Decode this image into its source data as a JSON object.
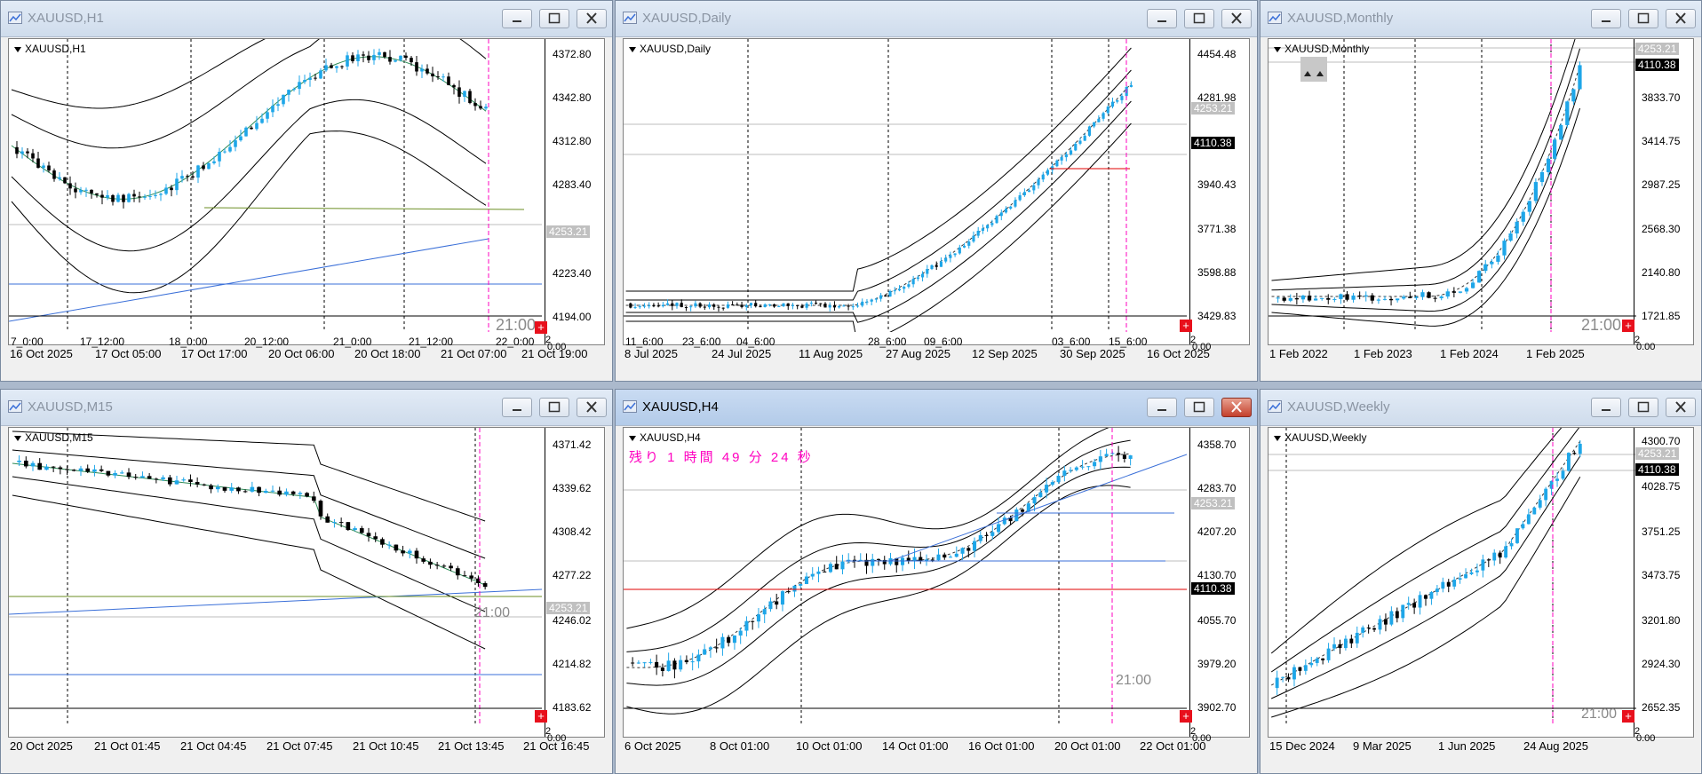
{
  "windows": [
    {
      "id": "h1",
      "title": "XAUUSD,H1",
      "symbol_label": "XAUUSD,H1",
      "prices": [
        "4372.80",
        "4342.80",
        "4312.80",
        "4283.40",
        "4253.21",
        "4223.40",
        "4194.00"
      ],
      "price_tag_gray": "4253.21",
      "big_time": "21:00",
      "inner_times": [
        "7_0:00",
        "17_12:00",
        "18_0:00",
        "20_12:00",
        "21_0:00",
        "21_12:00",
        "22_0:00"
      ],
      "times": [
        "16 Oct 2025",
        "17 Oct 05:00",
        "17 Oct 17:00",
        "20 Oct 06:00",
        "20 Oct 18:00",
        "21 Oct 07:00",
        "21 Oct 19:00"
      ],
      "sub_axis": [
        "2",
        "0.00"
      ]
    },
    {
      "id": "daily",
      "title": "XAUUSD,Daily",
      "symbol_label": "XAUUSD,Daily",
      "prices": [
        "4454.48",
        "4281.98",
        "4253.21",
        "4110.38",
        "3940.43",
        "3771.38",
        "3598.88",
        "3429.83"
      ],
      "price_tag_gray": "4253.21",
      "price_tag_black": "4110.38",
      "inner_times": [
        "11_6:00",
        "23_6:00",
        "04_6:00",
        "28_6:00",
        "09_6:00",
        "03_6:00",
        "15_6:00"
      ],
      "times": [
        "8 Jul 2025",
        "24 Jul 2025",
        "11 Aug 2025",
        "27 Aug 2025",
        "12 Sep 2025",
        "30 Sep 2025",
        "16 Oct 2025"
      ],
      "sub_axis": [
        "2",
        "0.00"
      ]
    },
    {
      "id": "monthly",
      "title": "XAUUSD,Monthly",
      "symbol_label": "XAUUSD,Monthly",
      "prices": [
        "4253.21",
        "4110.38",
        "3833.70",
        "3414.75",
        "2987.25",
        "2568.30",
        "2140.80",
        "1721.85"
      ],
      "price_tag_gray": "4253.21",
      "price_tag_black": "4110.38",
      "big_time": "21:00",
      "times": [
        "1 Feb 2022",
        "1 Feb 2023",
        "1 Feb 2024",
        "1 Feb 2025"
      ],
      "sub_axis": [
        "2",
        "0.00"
      ]
    },
    {
      "id": "m15",
      "title": "XAUUSD,M15",
      "symbol_label": "XAUUSD,M15",
      "prices": [
        "4371.42",
        "4339.62",
        "4308.42",
        "4277.22",
        "4253.21",
        "4246.02",
        "4214.82",
        "4183.62"
      ],
      "price_tag_gray": "4253.21",
      "big_time": "21:00",
      "times": [
        "20 Oct 2025",
        "21 Oct 01:45",
        "21 Oct 04:45",
        "21 Oct 07:45",
        "21 Oct 10:45",
        "21 Oct 13:45",
        "21 Oct 16:45"
      ],
      "sub_axis": [
        "2",
        "0.00"
      ]
    },
    {
      "id": "h4",
      "title": "XAUUSD,H4",
      "symbol_label": "XAUUSD,H4",
      "countdown": "残り 1 時間 49 分 24 秒",
      "prices": [
        "4358.70",
        "4283.70",
        "4253.21",
        "4207.20",
        "4130.70",
        "4110.38",
        "4055.70",
        "3979.20",
        "3902.70"
      ],
      "price_tag_gray": "4253.21",
      "price_tag_black": "4110.38",
      "big_time": "21:00",
      "times": [
        "6 Oct 2025",
        "8 Oct 01:00",
        "10 Oct 01:00",
        "14 Oct 01:00",
        "16 Oct 01:00",
        "20 Oct 01:00",
        "22 Oct 01:00"
      ],
      "sub_axis": [
        "2",
        "0.00"
      ]
    },
    {
      "id": "weekly",
      "title": "XAUUSD,Weekly",
      "symbol_label": "XAUUSD,Weekly",
      "prices": [
        "4300.70",
        "4253.21",
        "4110.38",
        "4028.75",
        "3751.25",
        "3473.75",
        "3201.80",
        "2924.30",
        "2652.35"
      ],
      "price_tag_gray": "4253.21",
      "price_tag_black": "4110.38",
      "big_time": "21:00",
      "times": [
        "15 Dec 2024",
        "9 Mar 2025",
        "1 Jun 2025",
        "24 Aug 2025"
      ],
      "sub_axis": [
        "2",
        "0.00"
      ]
    }
  ],
  "colors": {
    "bull": "#1ea6e8",
    "bear": "#000000",
    "band": "#000000",
    "ma": "#2e8b57",
    "trend": "#3a6fd8",
    "hline_red": "#e00000",
    "hline_green": "#6b8e23",
    "cursor": "#ff00c0"
  },
  "icons": {
    "window": "chart-window-icon",
    "minimize": "minimize-icon",
    "maximize": "maximize-icon",
    "close": "close-icon"
  }
}
